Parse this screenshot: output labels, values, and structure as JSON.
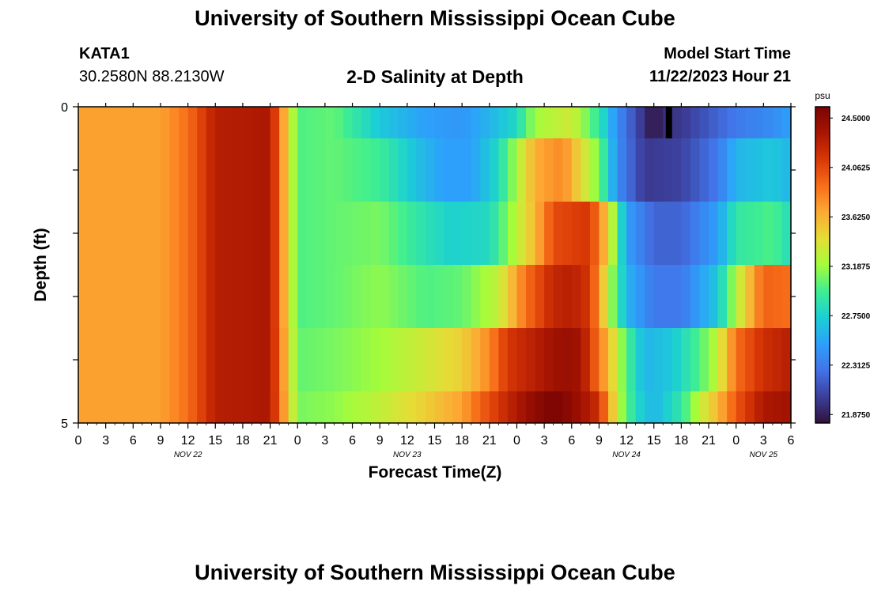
{
  "header": {
    "title": "University of Southern Mississippi Ocean Cube",
    "station": "KATA1",
    "coords": "30.2580N  88.2130W",
    "subtitle": "2-D Salinity at Depth",
    "model_start_label": "Model Start Time",
    "model_start_value": "11/22/2023 Hour 21"
  },
  "footer": {
    "title": "University of Southern Mississippi Ocean Cube"
  },
  "chart_data": {
    "type": "heatmap",
    "title": "2-D Salinity at Depth",
    "xlabel": "Forecast Time(Z)",
    "ylabel": "Depth (ft)",
    "ylim": [
      0,
      5
    ],
    "y_ticks": [
      "0",
      "5"
    ],
    "x_tick_labels": [
      "0",
      "3",
      "6",
      "9",
      "12",
      "15",
      "18",
      "21",
      "0",
      "3",
      "6",
      "9",
      "12",
      "15",
      "18",
      "21",
      "0",
      "3",
      "6",
      "9",
      "12",
      "15",
      "18",
      "21",
      "0",
      "3",
      "6"
    ],
    "day_labels": [
      "NOV 22",
      "NOV 23",
      "NOV 24",
      "NOV 25"
    ],
    "x_hours_range": [
      0,
      78
    ],
    "depth_levels": 5,
    "colorbar": {
      "unit": "psu",
      "labels": [
        "24.5000",
        "24.0625",
        "23.6250",
        "23.1875",
        "22.7500",
        "22.3125",
        "21.8750"
      ],
      "range": [
        21.8,
        24.6
      ],
      "colors": [
        "#30123b",
        "#3c3f9b",
        "#4273e8",
        "#2da0fb",
        "#1bcfd4",
        "#3fee91",
        "#a4fc3b",
        "#e5dd36",
        "#fcaa34",
        "#f76e19",
        "#d93806",
        "#a81502",
        "#7a0403"
      ]
    },
    "salinity_keyframes_by_depth": [
      {
        "depth_row": 0,
        "hours": [
          0,
          9,
          12,
          15,
          21,
          24,
          28,
          33,
          38,
          42,
          45,
          48,
          50,
          54,
          57,
          59,
          61,
          63,
          64,
          66,
          70,
          72,
          76,
          78
        ],
        "psu": [
          23.7,
          23.7,
          23.9,
          24.3,
          24.35,
          23.0,
          23.05,
          22.7,
          22.5,
          22.45,
          22.6,
          22.8,
          23.2,
          23.35,
          22.9,
          22.4,
          22.1,
          21.8,
          21.95,
          22.0,
          22.2,
          22.3,
          22.4,
          22.5
        ]
      },
      {
        "depth_row": 1,
        "hours": [
          0,
          9,
          12,
          15,
          21,
          24,
          28,
          33,
          38,
          40,
          43,
          46,
          50,
          53,
          57,
          59,
          62,
          66,
          70,
          72,
          76,
          78
        ],
        "psu": [
          23.7,
          23.7,
          23.9,
          24.3,
          24.35,
          23.0,
          23.05,
          22.95,
          22.6,
          22.5,
          22.5,
          22.8,
          23.65,
          23.8,
          23.1,
          22.4,
          22.0,
          22.05,
          22.3,
          22.6,
          22.7,
          22.6
        ]
      },
      {
        "depth_row": 2,
        "hours": [
          0,
          9,
          12,
          15,
          21,
          24,
          28,
          33,
          38,
          41,
          45,
          50,
          52,
          56,
          58,
          60,
          63,
          66,
          70,
          72,
          76,
          78
        ],
        "psu": [
          23.7,
          23.7,
          23.9,
          24.3,
          24.35,
          23.0,
          23.05,
          23.1,
          22.85,
          22.75,
          22.8,
          23.6,
          24.05,
          24.15,
          23.5,
          22.5,
          22.2,
          22.2,
          22.5,
          22.9,
          23.0,
          22.8
        ]
      },
      {
        "depth_row": 3,
        "hours": [
          0,
          9,
          12,
          15,
          21,
          24,
          28,
          33,
          38,
          42,
          46,
          49,
          52,
          54,
          56,
          58,
          60,
          63,
          66,
          70,
          72,
          75,
          78
        ],
        "psu": [
          23.7,
          23.7,
          23.9,
          24.3,
          24.35,
          23.0,
          23.05,
          23.15,
          23.0,
          23.05,
          23.3,
          23.9,
          24.25,
          24.3,
          24.15,
          23.3,
          22.6,
          22.3,
          22.3,
          22.7,
          23.25,
          23.95,
          23.9
        ]
      },
      {
        "depth_row": 4,
        "hours": [
          0,
          9,
          12,
          15,
          21,
          24,
          28,
          33,
          38,
          42,
          45,
          47,
          50,
          53,
          55,
          58,
          60,
          62,
          65,
          68,
          70,
          72,
          75,
          78
        ],
        "psu": [
          23.7,
          23.7,
          23.9,
          24.3,
          24.35,
          23.05,
          23.1,
          23.2,
          23.35,
          23.5,
          23.8,
          24.15,
          24.3,
          24.45,
          24.4,
          23.6,
          23.0,
          22.6,
          22.7,
          23.0,
          23.3,
          23.9,
          24.2,
          24.3
        ]
      },
      {
        "depth_row": 5,
        "hours": [
          0,
          9,
          12,
          15,
          21,
          24,
          28,
          33,
          38,
          42,
          44,
          47,
          50,
          52,
          54,
          57,
          59,
          61,
          63,
          66,
          68,
          70,
          72,
          75,
          78
        ],
        "psu": [
          23.7,
          23.7,
          23.9,
          24.3,
          24.35,
          23.1,
          23.15,
          23.3,
          23.5,
          23.7,
          23.95,
          24.25,
          24.5,
          24.6,
          24.5,
          24.2,
          23.3,
          22.8,
          22.6,
          22.9,
          23.3,
          23.6,
          24.0,
          24.35,
          24.4
        ]
      }
    ],
    "grid": false,
    "legend": "right colorbar"
  }
}
